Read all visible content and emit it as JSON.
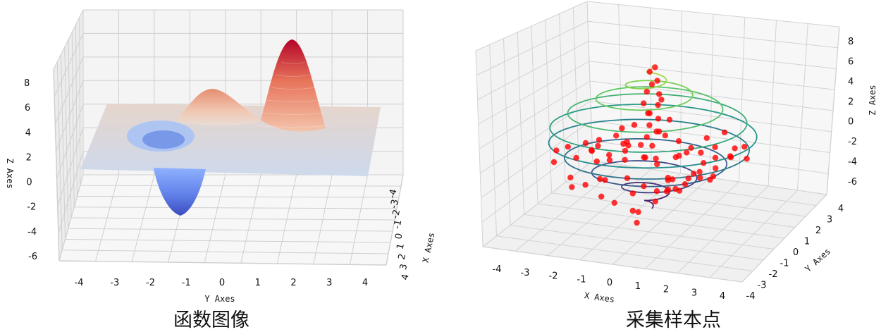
{
  "chart_data": [
    {
      "type": "surface3d",
      "caption": "函数图像",
      "xlabel": "X Axes",
      "ylabel": "Y Axes",
      "zlabel": "Z Axes",
      "x_ticks": [
        "-4",
        "-3",
        "-2",
        "-1",
        "0",
        "1",
        "2",
        "3",
        "4"
      ],
      "y_ticks": [
        "-4",
        "-3",
        "-2",
        "-1",
        "0",
        "1",
        "2",
        "3",
        "4"
      ],
      "z_ticks": [
        "8",
        "6",
        "4",
        "2",
        "0",
        "-2",
        "-4",
        "-6"
      ],
      "xlim": [
        -4,
        4
      ],
      "ylim": [
        -4.5,
        4.5
      ],
      "zlim": [
        -6,
        8
      ],
      "colormap": "coolwarm",
      "colors": {
        "low": "#3b4cc0",
        "mid": "#dddcdc",
        "high": "#b40426"
      },
      "peaks": [
        {
          "x": -0.5,
          "y": 2.0,
          "z": 8.1
        },
        {
          "x": 0.3,
          "y": -0.3,
          "z": 3.8
        },
        {
          "x": 0.0,
          "y": -1.2,
          "z": -6.5
        }
      ],
      "grid": true
    },
    {
      "type": "scatter3d",
      "caption": "采集样本点",
      "xlabel": "X Axes",
      "ylabel": "Y Axes",
      "zlabel": "Z Axes",
      "x_ticks": [
        "-4",
        "-3",
        "-2",
        "-1",
        "0",
        "1",
        "2",
        "3",
        "4"
      ],
      "y_ticks": [
        "-4",
        "-3",
        "-2",
        "-1",
        "0",
        "1",
        "2",
        "3",
        "4"
      ],
      "z_ticks": [
        "8",
        "6",
        "4",
        "2",
        "0",
        "-2",
        "-4",
        "-6"
      ],
      "xlim": [
        -4,
        4
      ],
      "ylim": [
        -4,
        4
      ],
      "zlim": [
        -7,
        8.5
      ],
      "point_color": "#ff0000",
      "spiral": {
        "z_start": -6.5,
        "z_end": 8,
        "max_radius": 4.5,
        "colormap": "viridis"
      },
      "series": [
        {
          "x": [
            0.1,
            -0.2,
            0.3,
            0.0,
            -0.1,
            0.2,
            0.4,
            -0.3,
            0.1,
            0.0,
            -0.2,
            0.3,
            0.6,
            -0.6,
            0.5,
            -0.4,
            0.2,
            -0.1,
            0.3,
            -0.2,
            0.8,
            -0.8,
            0.7,
            -0.5,
            1.0,
            -1.0,
            1.2,
            -1.3,
            1.5,
            -1.6,
            1.8,
            -2.0,
            2.2,
            -2.3,
            2.5,
            -2.6,
            2.8,
            -2.9,
            3.0,
            -3.2,
            3.3,
            -3.4,
            3.5,
            -3.6,
            1.1,
            -1.2,
            2.0,
            -2.1,
            1.6,
            -1.7,
            0.5,
            -0.6,
            2.4,
            -2.5,
            3.1,
            -3.0,
            0.9,
            -0.9,
            1.4,
            -1.5,
            0.2,
            -0.3,
            2.7,
            -2.8,
            1.9,
            -1.8,
            3.4,
            -3.3,
            0.7,
            -0.7,
            2.1,
            -2.2,
            1.3,
            -1.4,
            3.6,
            -3.7,
            0.4,
            -0.5,
            2.9,
            -2.7,
            1.7,
            -1.9,
            0.0,
            0.1,
            -0.4,
            0.5,
            2.3,
            -2.4,
            3.2,
            -3.1
          ],
          "y": [
            0.1,
            0.2,
            -0.1,
            0.0,
            -0.3,
            0.3,
            0.1,
            -0.2,
            0.4,
            -0.4,
            0.2,
            0.0,
            0.5,
            -0.5,
            -0.6,
            0.6,
            0.3,
            -0.3,
            0.7,
            -0.7,
            1.0,
            -1.0,
            -1.1,
            1.1,
            0.6,
            -0.6,
            1.4,
            -1.5,
            -0.8,
            0.9,
            1.7,
            -1.8,
            -1.2,
            1.3,
            2.0,
            -2.1,
            0.4,
            -0.5,
            -1.6,
            1.5,
            2.3,
            -2.4,
            0.9,
            -0.8,
            2.6,
            -2.7,
            -2.2,
            2.1,
            3.0,
            -3.1,
            -1.9,
            1.8,
            2.8,
            -2.9,
            -0.2,
            0.3,
            3.3,
            -3.2,
            -2.5,
            2.4,
            1.2,
            -1.3,
            -3.0,
            3.1,
            0.8,
            -0.9,
            -1.4,
            1.6,
            2.2,
            -2.3,
            3.5,
            -3.4,
            -0.4,
            0.5,
            1.9,
            -2.0,
            -2.8,
            2.7,
            0.0,
            0.2,
            -3.3,
            3.4,
            1.5,
            -1.6,
            2.5,
            -2.6,
            -0.7,
            0.8,
            -3.5,
            3.6
          ],
          "z": [
            7.8,
            7.2,
            6.6,
            6.1,
            5.5,
            5.0,
            4.6,
            4.2,
            3.8,
            3.4,
            3.0,
            2.7,
            2.4,
            2.1,
            1.8,
            1.5,
            1.2,
            0.9,
            0.6,
            0.3,
            0.0,
            -0.3,
            -0.6,
            -0.9,
            -1.2,
            -1.5,
            -0.8,
            -1.1,
            -0.4,
            -0.7,
            0.2,
            -0.2,
            0.5,
            -0.5,
            0.8,
            -0.9,
            0.3,
            -0.4,
            -1.0,
            -1.3,
            -0.6,
            -0.2,
            0.1,
            -0.8,
            -2.0,
            -2.3,
            -1.7,
            -1.9,
            -2.6,
            -2.8,
            -3.0,
            -3.2,
            -2.1,
            -2.4,
            -1.4,
            -1.6,
            -3.5,
            -3.7,
            -2.9,
            -3.1,
            -4.0,
            -4.3,
            -2.2,
            -2.5,
            -3.3,
            -3.6,
            -1.8,
            -2.0,
            -4.5,
            -4.8,
            -2.7,
            -3.0,
            -3.9,
            -4.1,
            -1.5,
            -1.7,
            -5.0,
            -5.3,
            -2.4,
            -2.6,
            -3.4,
            -3.8,
            -5.6,
            -5.9,
            -6.1,
            -6.3,
            -1.9,
            -2.2,
            -1.1,
            -1.3
          ]
        }
      ],
      "grid": true
    }
  ]
}
